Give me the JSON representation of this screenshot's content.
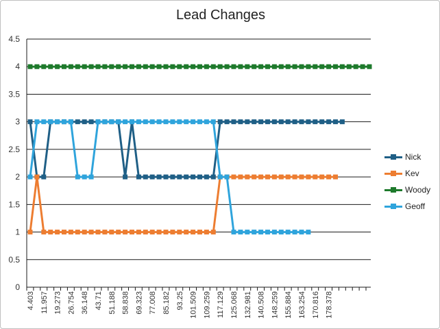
{
  "chart_data": {
    "type": "line",
    "title": "Lead Changes",
    "ylim": [
      0,
      4.5
    ],
    "yticks": [
      "0",
      "0.5",
      "1",
      "1.5",
      "2",
      "2.5",
      "3",
      "3.5",
      "4",
      "4.5"
    ],
    "xtick_labels": [
      "4.403",
      "11.957",
      "19.273",
      "26.754",
      "36.148",
      "43.71",
      "51.188",
      "58.838",
      "69.323",
      "77.008",
      "85.182",
      "93.25",
      "101.509",
      "109.259",
      "117.129",
      "125.068",
      "132.981",
      "140.508",
      "148.259",
      "155.884",
      "163.254",
      "170.816",
      "178.378"
    ],
    "grid": true,
    "legend_position": "right",
    "series": [
      {
        "name": "Nick",
        "color": "#1f5f86",
        "values": [
          3,
          2,
          2,
          3,
          3,
          3,
          3,
          3,
          3,
          3,
          3,
          3,
          3,
          3,
          2,
          3,
          2,
          2,
          2,
          2,
          2,
          2,
          2,
          2,
          2,
          2,
          2,
          2,
          3,
          3,
          3,
          3,
          3,
          3,
          3,
          3,
          3,
          3,
          3,
          3,
          3,
          3,
          3,
          3,
          3,
          3,
          3
        ]
      },
      {
        "name": "Kev",
        "color": "#ed7d31",
        "values": [
          1,
          2,
          1,
          1,
          1,
          1,
          1,
          1,
          1,
          1,
          1,
          1,
          1,
          1,
          1,
          1,
          1,
          1,
          1,
          1,
          1,
          1,
          1,
          1,
          1,
          1,
          1,
          1,
          2,
          2,
          2,
          2,
          2,
          2,
          2,
          2,
          2,
          2,
          2,
          2,
          2,
          2,
          2,
          2,
          2,
          2
        ]
      },
      {
        "name": "Woody",
        "color": "#1e7a2c",
        "values": [
          4,
          4,
          4,
          4,
          4,
          4,
          4,
          4,
          4,
          4,
          4,
          4,
          4,
          4,
          4,
          4,
          4,
          4,
          4,
          4,
          4,
          4,
          4,
          4,
          4,
          4,
          4,
          4,
          4,
          4,
          4,
          4,
          4,
          4,
          4,
          4,
          4,
          4,
          4,
          4,
          4,
          4,
          4,
          4,
          4,
          4,
          4,
          4,
          4,
          4,
          4
        ]
      },
      {
        "name": "Geoff",
        "color": "#2fa4dc",
        "values": [
          2,
          3,
          3,
          3,
          3,
          3,
          3,
          2,
          2,
          2,
          3,
          3,
          3,
          3,
          3,
          3,
          3,
          3,
          3,
          3,
          3,
          3,
          3,
          3,
          3,
          3,
          3,
          3,
          2,
          2,
          1,
          1,
          1,
          1,
          1,
          1,
          1,
          1,
          1,
          1,
          1,
          1
        ]
      }
    ]
  }
}
